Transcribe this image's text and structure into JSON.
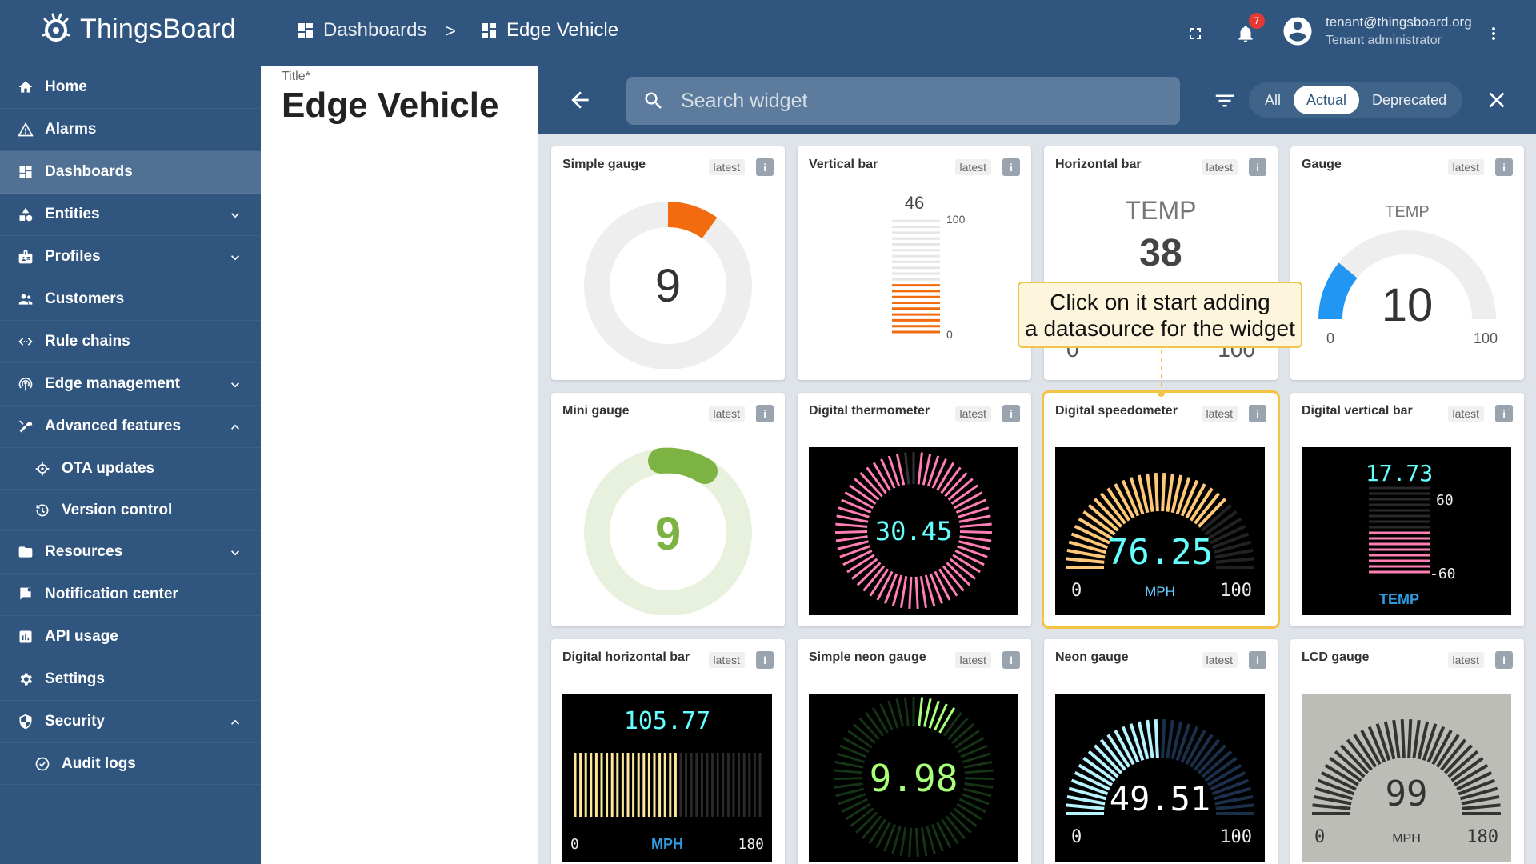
{
  "header": {
    "app_name": "ThingsBoard",
    "breadcrumb": [
      {
        "label": "Dashboards",
        "icon": "dashboard-icon"
      },
      {
        "label": "Edge Vehicle",
        "icon": "dashboard-icon"
      }
    ],
    "breadcrumb_separator": ">",
    "notification_count": "7",
    "user_email": "tenant@thingsboard.org",
    "user_role": "Tenant administrator"
  },
  "sidebar": {
    "items": [
      {
        "label": "Home",
        "icon": "home-icon"
      },
      {
        "label": "Alarms",
        "icon": "warning-icon"
      },
      {
        "label": "Dashboards",
        "icon": "dashboard-icon",
        "active": true
      },
      {
        "label": "Entities",
        "icon": "shapes-icon",
        "expandable": true
      },
      {
        "label": "Profiles",
        "icon": "profile-icon",
        "expandable": true
      },
      {
        "label": "Customers",
        "icon": "people-icon"
      },
      {
        "label": "Rule chains",
        "icon": "code-icon"
      },
      {
        "label": "Edge management",
        "icon": "router-icon",
        "expandable": true
      },
      {
        "label": "Advanced features",
        "icon": "tools-icon",
        "expanded": true
      },
      {
        "label": "OTA updates",
        "icon": "ota-icon",
        "sub": true
      },
      {
        "label": "Version control",
        "icon": "history-icon",
        "sub": true
      },
      {
        "label": "Resources",
        "icon": "folder-icon",
        "expandable": true
      },
      {
        "label": "Notification center",
        "icon": "flag-icon"
      },
      {
        "label": "API usage",
        "icon": "chart-icon"
      },
      {
        "label": "Settings",
        "icon": "gear-icon"
      },
      {
        "label": "Security",
        "icon": "shield-icon",
        "expanded": true
      },
      {
        "label": "Audit logs",
        "icon": "audit-icon",
        "sub": true
      }
    ]
  },
  "title_panel": {
    "label": "Title*",
    "value": "Edge Vehicle"
  },
  "widget_toolbar": {
    "search_placeholder": "Search widget",
    "filters": [
      "All",
      "Actual",
      "Deprecated"
    ],
    "selected_filter": "Actual"
  },
  "widgets": [
    {
      "title": "Simple gauge",
      "tag": "latest",
      "value": "9"
    },
    {
      "title": "Vertical bar",
      "tag": "latest",
      "value": "46",
      "max": "100",
      "min": "0"
    },
    {
      "title": "Horizontal bar",
      "tag": "latest",
      "label": "TEMP",
      "value": "38",
      "min": "0",
      "max": "100"
    },
    {
      "title": "Gauge",
      "tag": "latest",
      "label": "TEMP",
      "value": "10",
      "min": "0",
      "max": "100"
    },
    {
      "title": "Mini gauge",
      "tag": "latest",
      "value": "9"
    },
    {
      "title": "Digital thermometer",
      "tag": "latest",
      "value": "30.45"
    },
    {
      "title": "Digital speedometer",
      "tag": "latest",
      "value": "76.25",
      "unit": "MPH",
      "min": "0",
      "max": "100"
    },
    {
      "title": "Digital vertical bar",
      "tag": "latest",
      "value": "17.73",
      "max": "60",
      "min": "-60",
      "label": "TEMP"
    },
    {
      "title": "Digital horizontal bar",
      "tag": "latest",
      "value": "105.77",
      "unit": "MPH",
      "min": "0",
      "max": "180"
    },
    {
      "title": "Simple neon gauge",
      "tag": "latest",
      "value": "9.98"
    },
    {
      "title": "Neon gauge",
      "tag": "latest",
      "value": "49.51",
      "min": "0",
      "max": "100"
    },
    {
      "title": "LCD gauge",
      "tag": "latest",
      "value": "99",
      "unit": "MPH",
      "min": "0",
      "max": "180"
    }
  ],
  "tooltip": {
    "line1": "Click on it start adding",
    "line2": "a datasource for the widget"
  },
  "info_glyph": "i",
  "colors": {
    "primary": "#305680",
    "accent_orange": "#f26b0f",
    "accent_blue": "#2196f3",
    "accent_green": "#7cb342",
    "tooltip_border": "#f2c44c"
  }
}
